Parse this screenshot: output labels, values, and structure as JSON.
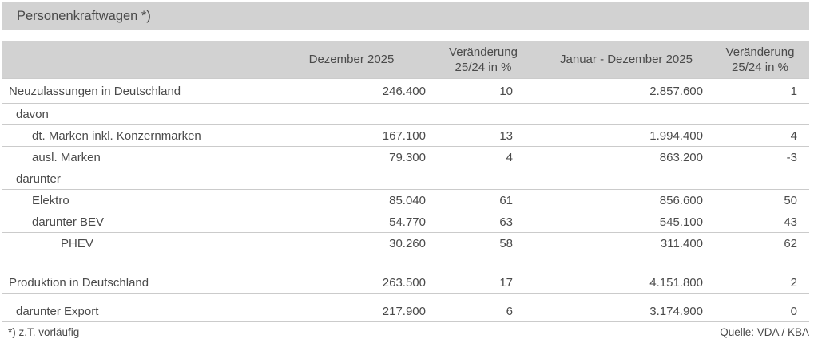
{
  "title": "Personenkraftwagen *)",
  "header": {
    "dezember": "Dezember 2025",
    "veraenderung1": [
      "Veränderung",
      "25/24 in %"
    ],
    "januar_dezember": "Januar - Dezember 2025",
    "veraenderung2": [
      "Veränderung",
      "25/24 in %"
    ]
  },
  "rows": [
    {
      "type": "data",
      "indent": 0,
      "label": "Neuzulassungen in Deutschland",
      "values": [
        "246.400",
        "10",
        "2.857.600",
        "1"
      ]
    },
    {
      "type": "group",
      "indent": 1,
      "label": "davon",
      "values": [
        "",
        "",
        "",
        ""
      ]
    },
    {
      "type": "data",
      "indent": 2,
      "label": "dt. Marken inkl. Konzernmarken",
      "values": [
        "167.100",
        "13",
        "1.994.400",
        "4"
      ]
    },
    {
      "type": "data",
      "indent": 2,
      "label": "ausl. Marken",
      "values": [
        "79.300",
        "4",
        "863.200",
        "-3"
      ]
    },
    {
      "type": "group",
      "indent": 1,
      "label": "darunter",
      "values": [
        "",
        "",
        "",
        ""
      ]
    },
    {
      "type": "data",
      "indent": 2,
      "label": "Elektro",
      "values": [
        "85.040",
        "61",
        "856.600",
        "50"
      ]
    },
    {
      "type": "data",
      "indent": 2,
      "label": "darunter BEV",
      "values": [
        "54.770",
        "63",
        "545.100",
        "43"
      ]
    },
    {
      "type": "data",
      "indent": 3,
      "label": "PHEV",
      "values": [
        "30.260",
        "58",
        "311.400",
        "62"
      ]
    },
    {
      "type": "spacer",
      "size": "large"
    },
    {
      "type": "data",
      "indent": 0,
      "label": "Produktion in Deutschland",
      "values": [
        "263.500",
        "17",
        "4.151.800",
        "2"
      ]
    },
    {
      "type": "spacer",
      "size": "small"
    },
    {
      "type": "data",
      "indent": 1,
      "label": "darunter Export",
      "values": [
        "217.900",
        "6",
        "3.174.900",
        "0"
      ]
    }
  ],
  "footer": {
    "footnote": "*) z.T. vorläufig",
    "source": "Quelle: VDA / KBA"
  },
  "colors": {
    "header_bg": "#d2d2d2",
    "text": "#4a4a4a",
    "border": "#cbcbcb"
  }
}
